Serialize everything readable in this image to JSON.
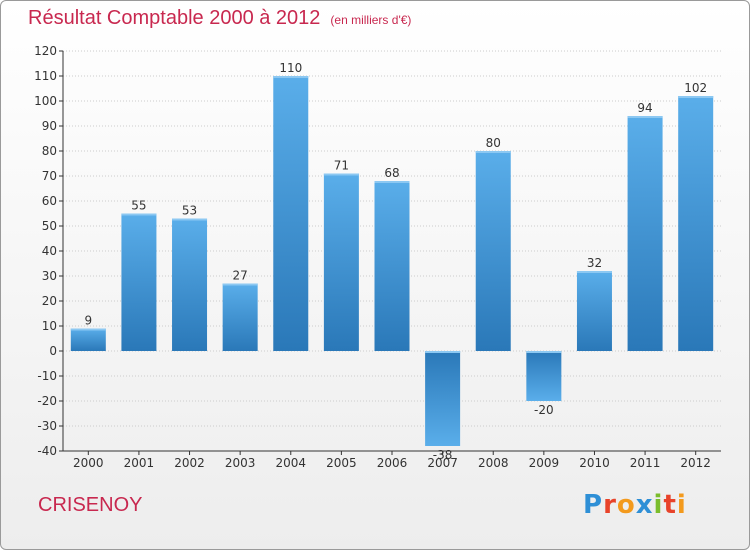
{
  "header": {
    "title": "Résultat Comptable 2000 à 2012",
    "subtitle": "(en milliers d'€)"
  },
  "footer": {
    "location": "CRISENOY",
    "brand": "Proxiti"
  },
  "colors": {
    "title": "#c8284f",
    "bar_top": "#5aaeea",
    "bar_bottom": "#2a78b8",
    "grid": "#cccccc",
    "axis": "#333333"
  },
  "chart_data": {
    "type": "bar",
    "title": "Résultat Comptable 2000 à 2012",
    "subtitle": "(en milliers d'€)",
    "xlabel": "",
    "ylabel": "",
    "categories": [
      "2000",
      "2001",
      "2002",
      "2003",
      "2004",
      "2005",
      "2006",
      "2007",
      "2008",
      "2009",
      "2010",
      "2011",
      "2012"
    ],
    "values": [
      9,
      55,
      53,
      27,
      110,
      71,
      68,
      -38,
      80,
      -20,
      32,
      94,
      102
    ],
    "ylim": [
      -40,
      120
    ],
    "ytick_step": 10,
    "grid": true,
    "legend": "none"
  }
}
